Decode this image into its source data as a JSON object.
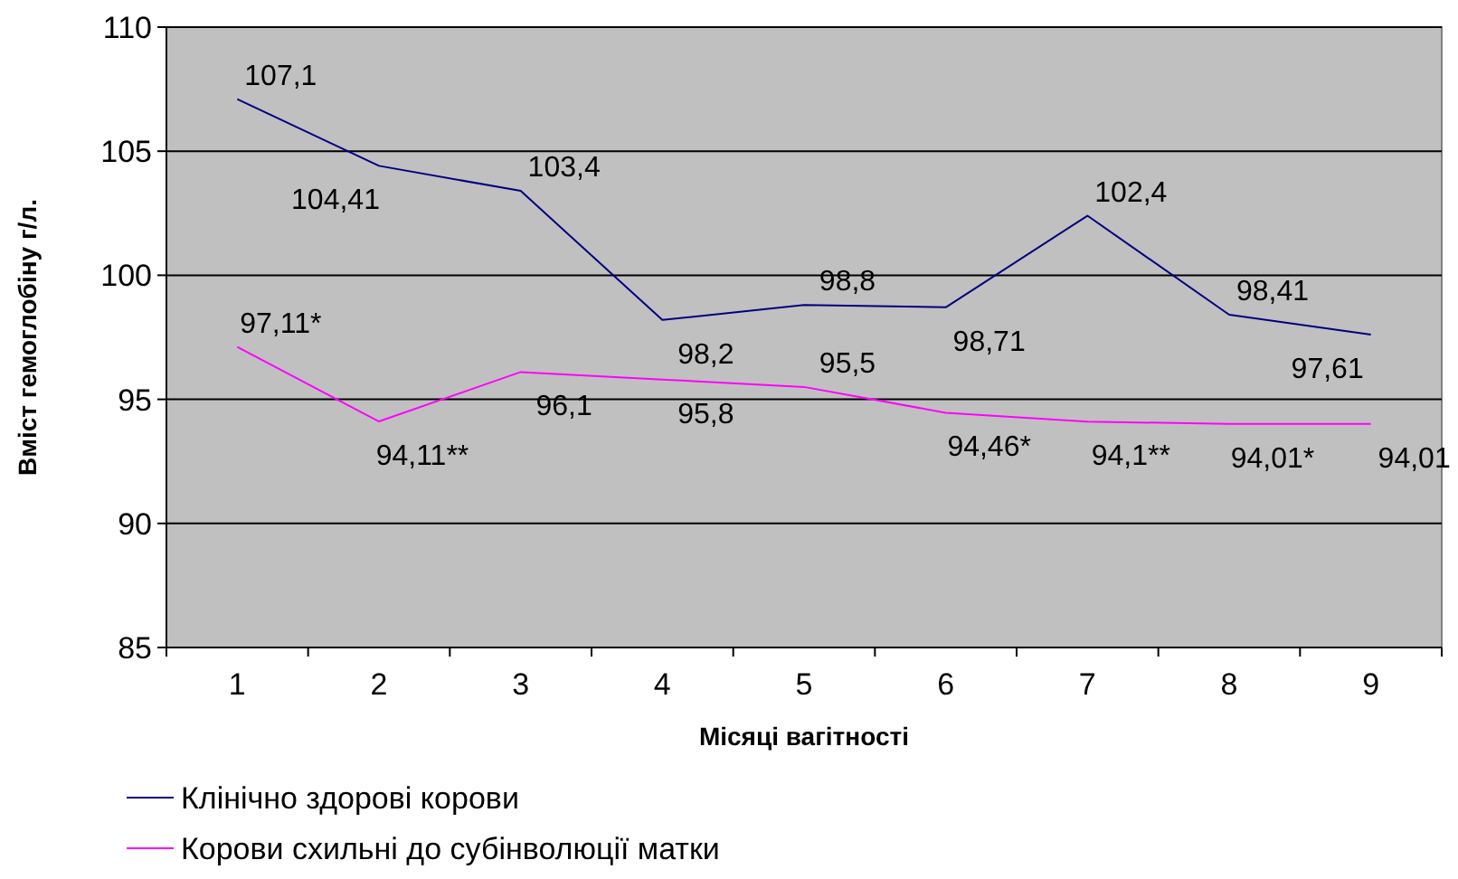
{
  "chart_data": {
    "type": "line",
    "xlabel": "Місяці вагітності",
    "ylabel": "Вміст гемоглобіну г/л.",
    "categories": [
      "1",
      "2",
      "3",
      "4",
      "5",
      "6",
      "7",
      "8",
      "9"
    ],
    "series": [
      {
        "name": "Клінічно здорові корови",
        "color": "#000080",
        "values": [
          107.1,
          104.41,
          103.4,
          98.2,
          98.8,
          98.71,
          102.4,
          98.41,
          97.61
        ],
        "value_labels": [
          "107,1",
          "104,41",
          "103,4",
          "98,2",
          "98,8",
          "98,71",
          "102,4",
          "98,41",
          "97,61"
        ]
      },
      {
        "name": "Корови схильні до субінволюції матки",
        "color": "#ff00ff",
        "values": [
          97.11,
          94.11,
          96.1,
          95.8,
          95.5,
          94.46,
          94.1,
          94.01,
          94.01
        ],
        "value_labels": [
          "97,11*",
          "94,11**",
          "96,1",
          "95,8",
          "95,5",
          "94,46*",
          "94,1**",
          "94,01*",
          "94,01"
        ]
      }
    ],
    "ylim": [
      85,
      110
    ],
    "yticks": [
      85,
      90,
      95,
      100,
      105,
      110
    ],
    "grid": "y",
    "legend": "bottom",
    "marker": "none",
    "line_style": "solid"
  }
}
